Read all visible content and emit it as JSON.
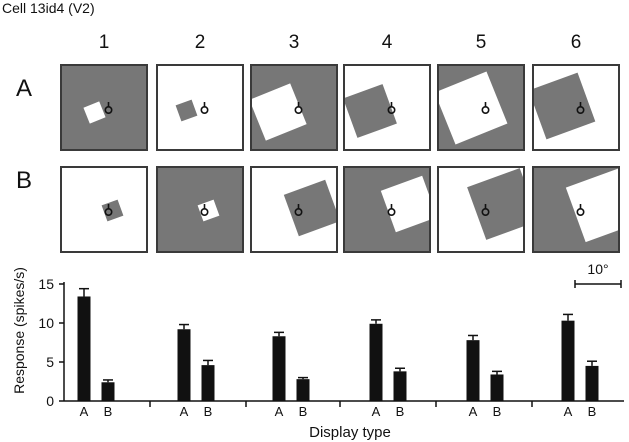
{
  "title": "Cell 13id4 (V2)",
  "columns": [
    "1",
    "2",
    "3",
    "4",
    "5",
    "6"
  ],
  "rows": [
    {
      "label": "A",
      "tiles": [
        {
          "background": "#777777",
          "square": "#ffffff",
          "square_size": "small"
        },
        {
          "background": "#ffffff",
          "square": "#777777",
          "square_size": "small"
        },
        {
          "background": "#777777",
          "square": "#ffffff",
          "square_size": "large"
        },
        {
          "background": "#ffffff",
          "square": "#777777",
          "square_size": "large"
        },
        {
          "background": "#777777",
          "square": "#ffffff",
          "square_size": "large"
        },
        {
          "background": "#ffffff",
          "square": "#777777",
          "square_size": "large"
        }
      ]
    },
    {
      "label": "B",
      "tiles": [
        {
          "background": "#ffffff",
          "square": "#777777",
          "square_size": "small"
        },
        {
          "background": "#777777",
          "square": "#ffffff",
          "square_size": "small"
        },
        {
          "background": "#ffffff",
          "square": "#777777",
          "square_size": "large"
        },
        {
          "background": "#777777",
          "square": "#ffffff",
          "square_size": "large"
        },
        {
          "background": "#ffffff",
          "square": "#777777",
          "square_size": "large"
        },
        {
          "background": "#777777",
          "square": "#ffffff",
          "square_size": "large"
        }
      ]
    }
  ],
  "colors": {
    "gray": "#777777",
    "white": "#ffffff",
    "bar": "#111111"
  },
  "scale_bar_label": "10°",
  "chart_data": {
    "type": "bar",
    "ylabel": "Response (spikes/s)",
    "xlabel": "Display type",
    "ylim": [
      0,
      15
    ],
    "yticks": [
      "0",
      "5",
      "10",
      "15"
    ],
    "groups": [
      "1",
      "2",
      "3",
      "4",
      "5",
      "6"
    ],
    "series": [
      {
        "name": "A",
        "values": [
          13.4,
          9.2,
          8.3,
          9.9,
          7.8,
          10.3
        ],
        "errors": [
          1.0,
          0.6,
          0.5,
          0.5,
          0.6,
          0.8
        ]
      },
      {
        "name": "B",
        "values": [
          2.4,
          4.6,
          2.8,
          3.8,
          3.4,
          4.5
        ],
        "errors": [
          0.3,
          0.6,
          0.2,
          0.4,
          0.4,
          0.6
        ]
      }
    ],
    "legend": "none",
    "grid": false
  }
}
